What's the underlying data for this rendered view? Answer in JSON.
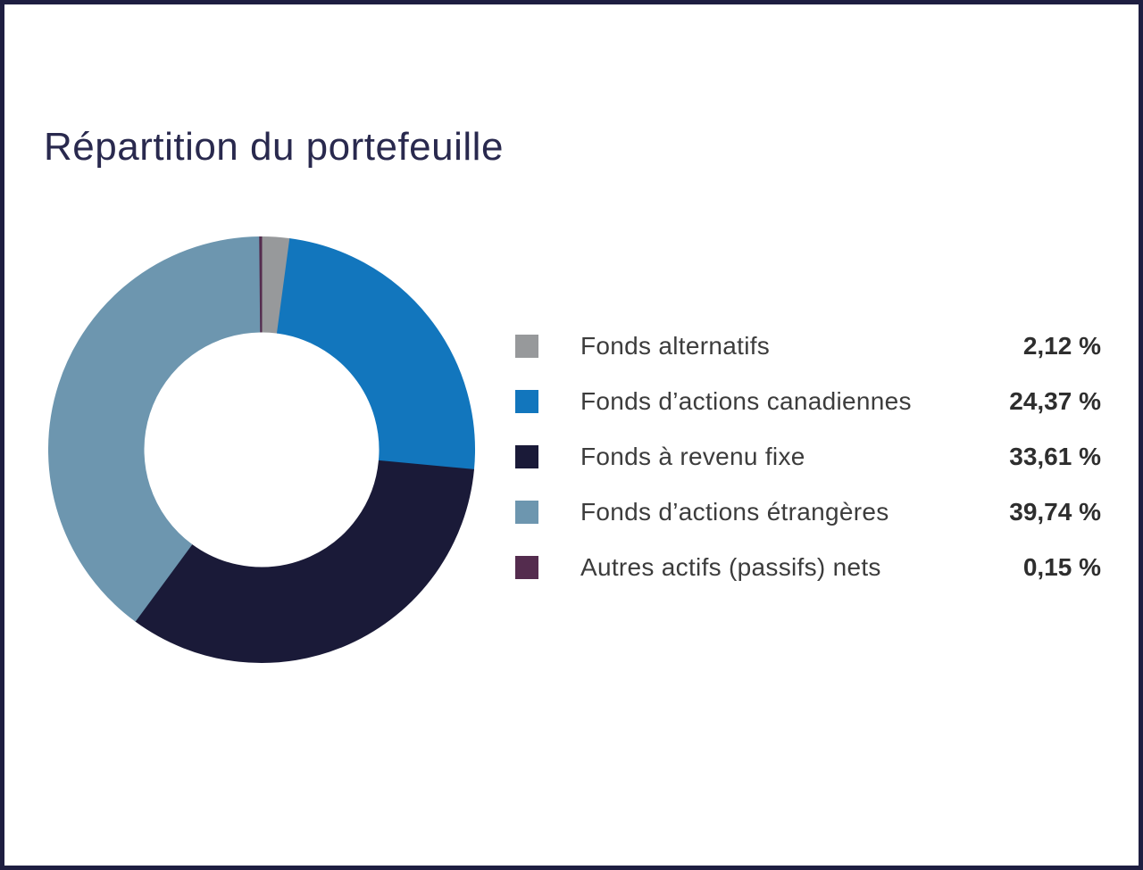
{
  "page": {
    "title": "Répartition du portefeuille"
  },
  "colors": {
    "frame_border": "#1E1E41",
    "title_text": "#29294E",
    "legend_text": "#3C3C3C",
    "background": "#FFFFFF"
  },
  "chart_data": {
    "type": "pie",
    "subtype": "donut",
    "title": "Répartition du portefeuille",
    "legend_position": "right",
    "start_angle_deg": 0,
    "direction": "clockwise",
    "inner_radius_ratio": 0.55,
    "series": [
      {
        "label": "Fonds alternatifs",
        "value": 2.12,
        "display_value": "2,12 %",
        "color": "#97999B"
      },
      {
        "label": "Fonds d’actions canadiennes",
        "value": 24.37,
        "display_value": "24,37 %",
        "color": "#1276BD"
      },
      {
        "label": "Fonds à revenu fixe",
        "value": 33.61,
        "display_value": "33,61 %",
        "color": "#1A1A38"
      },
      {
        "label": "Fonds d’actions étrangères",
        "value": 39.74,
        "display_value": "39,74 %",
        "color": "#6D96AF"
      },
      {
        "label": "Autres actifs (passifs) nets",
        "value": 0.15,
        "display_value": "0,15 %",
        "color": "#542C4E"
      }
    ]
  }
}
